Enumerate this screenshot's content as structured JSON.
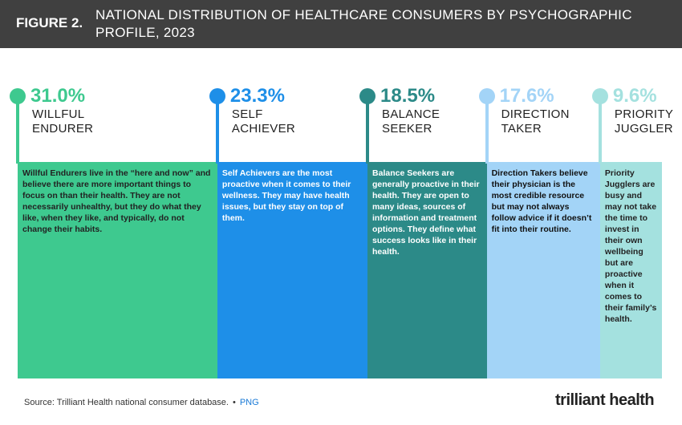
{
  "header": {
    "figure_label": "FIGURE 2.",
    "title": "NATIONAL DISTRIBUTION OF HEALTHCARE CONSUMERS BY PSYCHOGRAPHIC PROFILE, 2023"
  },
  "chart_data": {
    "type": "bar",
    "title": "NATIONAL DISTRIBUTION OF HEALTHCARE CONSUMERS BY PSYCHOGRAPHIC PROFILE, 2023",
    "categories": [
      "WILLFUL ENDURER",
      "SELF ACHIEVER",
      "BALANCE SEEKER",
      "DIRECTION TAKER",
      "PRIORITY JUGGLER"
    ],
    "values": [
      31.0,
      23.3,
      18.5,
      17.6,
      9.6
    ],
    "unit": "%",
    "segments": [
      {
        "percent_label": "31.0%",
        "name_line1": "WILLFUL",
        "name_line2": "ENDURER",
        "value": 31.0,
        "color": "#3ec98f",
        "text_color": "#222222",
        "description": "Willful Endurers live in the “here and now” and believe there are more important things to focus on than their health. They are not necessarily unhealthy, but they do what they like, when they like, and typically, do not change their habits."
      },
      {
        "percent_label": "23.3%",
        "name_line1": "SELF",
        "name_line2": "ACHIEVER",
        "value": 23.3,
        "color": "#1e8fe8",
        "text_color": "#ffffff",
        "description": "Self Achievers are the most proactive when it comes to their wellness. They may have health issues, but they stay on top of them."
      },
      {
        "percent_label": "18.5%",
        "name_line1": "BALANCE",
        "name_line2": "SEEKER",
        "value": 18.5,
        "color": "#2c8a88",
        "text_color": "#ffffff",
        "description": "Balance Seekers are generally proactive in their health. They are open to many ideas, sources of information and treatment options. They define what success looks like in their health."
      },
      {
        "percent_label": "17.6%",
        "name_line1": "DIRECTION",
        "name_line2": "TAKER",
        "value": 17.6,
        "color": "#a3d4f7",
        "text_color": "#111111",
        "description": "Direction Takers believe their physician is the most credible resource but may not always follow advice if it doesn’t fit into their routine."
      },
      {
        "percent_label": "9.6%",
        "name_line1": "PRIORITY",
        "name_line2": "JUGGLER",
        "value": 9.6,
        "color": "#a4e1df",
        "text_color": "#222222",
        "description": "Priority Jugglers are busy and may not take the time to invest in their own wellbeing but are proactive when it comes to their family’s health."
      }
    ]
  },
  "footer": {
    "source": "Source: Trilliant Health national consumer database.",
    "separator": "•",
    "png_link": "PNG",
    "logo": "trilliant health"
  }
}
